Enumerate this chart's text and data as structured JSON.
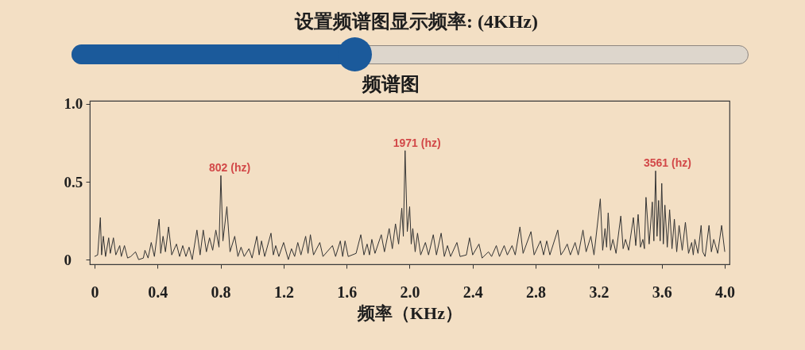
{
  "chart_data": [
    {
      "type": "other",
      "title": "设置频谱图显示频率: (4KHz)"
    },
    {
      "type": "line",
      "title": "频谱图",
      "xlabel": "频率（KHz）",
      "color": "#333333",
      "x": [
        0,
        0.02,
        0.037,
        0.045,
        0.056,
        0.07,
        0.09,
        0.1,
        0.12,
        0.135,
        0.16,
        0.17,
        0.19,
        0.21,
        0.23,
        0.26,
        0.28,
        0.31,
        0.32,
        0.34,
        0.36,
        0.38,
        0.41,
        0.42,
        0.435,
        0.45,
        0.47,
        0.49,
        0.52,
        0.54,
        0.56,
        0.58,
        0.6,
        0.62,
        0.65,
        0.67,
        0.69,
        0.71,
        0.73,
        0.75,
        0.77,
        0.79,
        0.802,
        0.815,
        0.84,
        0.86,
        0.89,
        0.91,
        0.93,
        0.95,
        0.98,
        1.0,
        1.03,
        1.045,
        1.06,
        1.08,
        1.12,
        1.135,
        1.15,
        1.17,
        1.2,
        1.23,
        1.25,
        1.27,
        1.29,
        1.31,
        1.34,
        1.355,
        1.37,
        1.39,
        1.43,
        1.45,
        1.51,
        1.53,
        1.56,
        1.575,
        1.59,
        1.61,
        1.66,
        1.69,
        1.71,
        1.73,
        1.745,
        1.76,
        1.78,
        1.82,
        1.84,
        1.87,
        1.89,
        1.91,
        1.93,
        1.95,
        1.96,
        1.971,
        1.985,
        2.0,
        2.01,
        2.02,
        2.035,
        2.05,
        2.07,
        2.1,
        2.12,
        2.15,
        2.17,
        2.2,
        2.22,
        2.24,
        2.26,
        2.3,
        2.32,
        2.36,
        2.38,
        2.4,
        2.44,
        2.46,
        2.5,
        2.52,
        2.55,
        2.57,
        2.6,
        2.62,
        2.65,
        2.67,
        2.7,
        2.72,
        2.77,
        2.79,
        2.83,
        2.85,
        2.87,
        2.89,
        2.94,
        2.96,
        2.98,
        3.0,
        3.02,
        3.05,
        3.07,
        3.1,
        3.12,
        3.15,
        3.17,
        3.21,
        3.225,
        3.24,
        3.25,
        3.26,
        3.275,
        3.29,
        3.31,
        3.34,
        3.355,
        3.37,
        3.39,
        3.42,
        3.435,
        3.45,
        3.465,
        3.48,
        3.49,
        3.5,
        3.52,
        3.54,
        3.55,
        3.561,
        3.57,
        3.58,
        3.59,
        3.6,
        3.61,
        3.62,
        3.635,
        3.65,
        3.665,
        3.68,
        3.695,
        3.71,
        3.73,
        3.75,
        3.77,
        3.79,
        3.8,
        3.81,
        3.83,
        3.85,
        3.86,
        3.875,
        3.9,
        3.915,
        3.93,
        3.955,
        3.98,
        4.0
      ],
      "values": [
        0.02,
        0.03,
        0.27,
        0.03,
        0.15,
        0.02,
        0.14,
        0.04,
        0.14,
        0.03,
        0.09,
        0.02,
        0.09,
        0.01,
        0.02,
        0.05,
        0,
        0.01,
        0.06,
        0.01,
        0.11,
        0.02,
        0.26,
        0.04,
        0.15,
        0.05,
        0.21,
        0.03,
        0.1,
        0.02,
        0.09,
        0.02,
        0.08,
        0,
        0.19,
        0.03,
        0.19,
        0.05,
        0.14,
        0.06,
        0.19,
        0.08,
        0.54,
        0.12,
        0.34,
        0.05,
        0.15,
        0.02,
        0.08,
        0.02,
        0.07,
        0.01,
        0.15,
        0.03,
        0.12,
        0.02,
        0.17,
        0.03,
        0.09,
        0.02,
        0.11,
        0,
        0.07,
        0.02,
        0.11,
        0.03,
        0.15,
        0.04,
        0.16,
        0.03,
        0.11,
        0.02,
        0.09,
        0.02,
        0.12,
        0.02,
        0.12,
        0.02,
        0.04,
        0.16,
        0.03,
        0.1,
        0.03,
        0.13,
        0.04,
        0.16,
        0.05,
        0.2,
        0.07,
        0.23,
        0.1,
        0.33,
        0.15,
        0.7,
        0.18,
        0.34,
        0.1,
        0.2,
        0.05,
        0.17,
        0.03,
        0.11,
        0.03,
        0.16,
        0.03,
        0.17,
        0.02,
        0.09,
        0.02,
        0.11,
        0.02,
        0.03,
        0.14,
        0.03,
        0.1,
        0.01,
        0.05,
        0.02,
        0.09,
        0.02,
        0.09,
        0.03,
        0.09,
        0.03,
        0.21,
        0.04,
        0.18,
        0.03,
        0.12,
        0.03,
        0.12,
        0.03,
        0.19,
        0.03,
        0.06,
        0.1,
        0.03,
        0.11,
        0.03,
        0.19,
        0.05,
        0.15,
        0.03,
        0.39,
        0.06,
        0.2,
        0.08,
        0.3,
        0.06,
        0.13,
        0.04,
        0.28,
        0.07,
        0.13,
        0.06,
        0.27,
        0.09,
        0.29,
        0.08,
        0.13,
        0.07,
        0.4,
        0.1,
        0.37,
        0.12,
        0.57,
        0.15,
        0.38,
        0.12,
        0.49,
        0.1,
        0.35,
        0.08,
        0.32,
        0.07,
        0.26,
        0.05,
        0.22,
        0.06,
        0.24,
        0.04,
        0.11,
        0.03,
        0.13,
        0.04,
        0.22,
        0.05,
        0.02,
        0.22,
        0.05,
        0.13,
        0.04,
        0.22,
        0.05
      ],
      "xlim": [
        -0.03,
        4.03
      ],
      "xticks": [
        0,
        0.4,
        0.8,
        1.2,
        1.6,
        {
          "value": 2,
          "label": "2.0"
        },
        2.4,
        2.8,
        3.2,
        3.6,
        {
          "value": 4,
          "label": "4.0"
        }
      ],
      "ylim": [
        -0.03,
        1.02
      ],
      "yticks": [
        0,
        0.5,
        {
          "value": 1,
          "label": "1.0"
        }
      ],
      "grid": false,
      "annotations": [
        {
          "text": "802 (hz)",
          "x": 0.802,
          "y": 0.54
        },
        {
          "text": "1971 (hz)",
          "x": 1.971,
          "y": 0.7
        },
        {
          "text": "3561 (hz)",
          "x": 3.561,
          "y": 0.57
        }
      ]
    }
  ]
}
